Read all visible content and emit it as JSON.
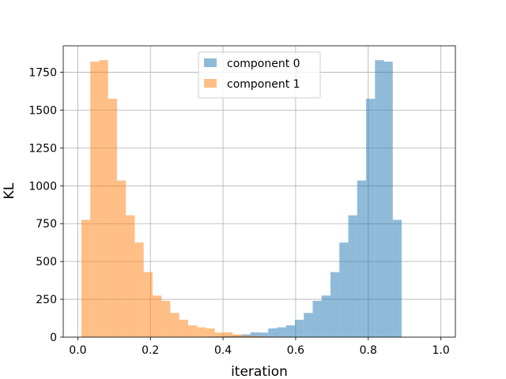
{
  "chart_data": {
    "type": "bar",
    "title": "",
    "xlabel": "iteration",
    "ylabel": "KL",
    "xlim": [
      -0.04,
      1.04
    ],
    "ylim": [
      0,
      1925
    ],
    "xticks": [
      0.0,
      0.2,
      0.4,
      0.6,
      0.8,
      1.0
    ],
    "xtick_labels": [
      "0.0",
      "0.2",
      "0.4",
      "0.6",
      "0.8",
      "1.0"
    ],
    "yticks": [
      0,
      250,
      500,
      750,
      1000,
      1250,
      1500,
      1750
    ],
    "ytick_labels": [
      "0",
      "250",
      "500",
      "750",
      "1000",
      "1250",
      "1500",
      "1750"
    ],
    "grid": true,
    "legend_position": "top-center",
    "bin_start": 0.01,
    "bin_width": 0.0245,
    "series": [
      {
        "name": "component 0",
        "color": "#1f77b4",
        "opacity": 0.5,
        "values": [
          0,
          0,
          0,
          0,
          0,
          0,
          0,
          0,
          0,
          0,
          0,
          0,
          0,
          0,
          3,
          5,
          8,
          10,
          18,
          32,
          30,
          58,
          65,
          78,
          115,
          160,
          240,
          275,
          430,
          625,
          805,
          1035,
          1575,
          1830,
          1820,
          775
        ]
      },
      {
        "name": "component 1",
        "color": "#ff7f0e",
        "opacity": 0.5,
        "values": [
          775,
          1820,
          1830,
          1575,
          1035,
          805,
          625,
          430,
          275,
          240,
          160,
          115,
          78,
          65,
          58,
          30,
          32,
          18,
          10,
          8,
          5,
          3,
          0,
          0,
          0,
          0,
          0,
          0,
          0,
          0,
          0,
          0,
          0,
          0,
          0,
          0
        ]
      }
    ]
  }
}
